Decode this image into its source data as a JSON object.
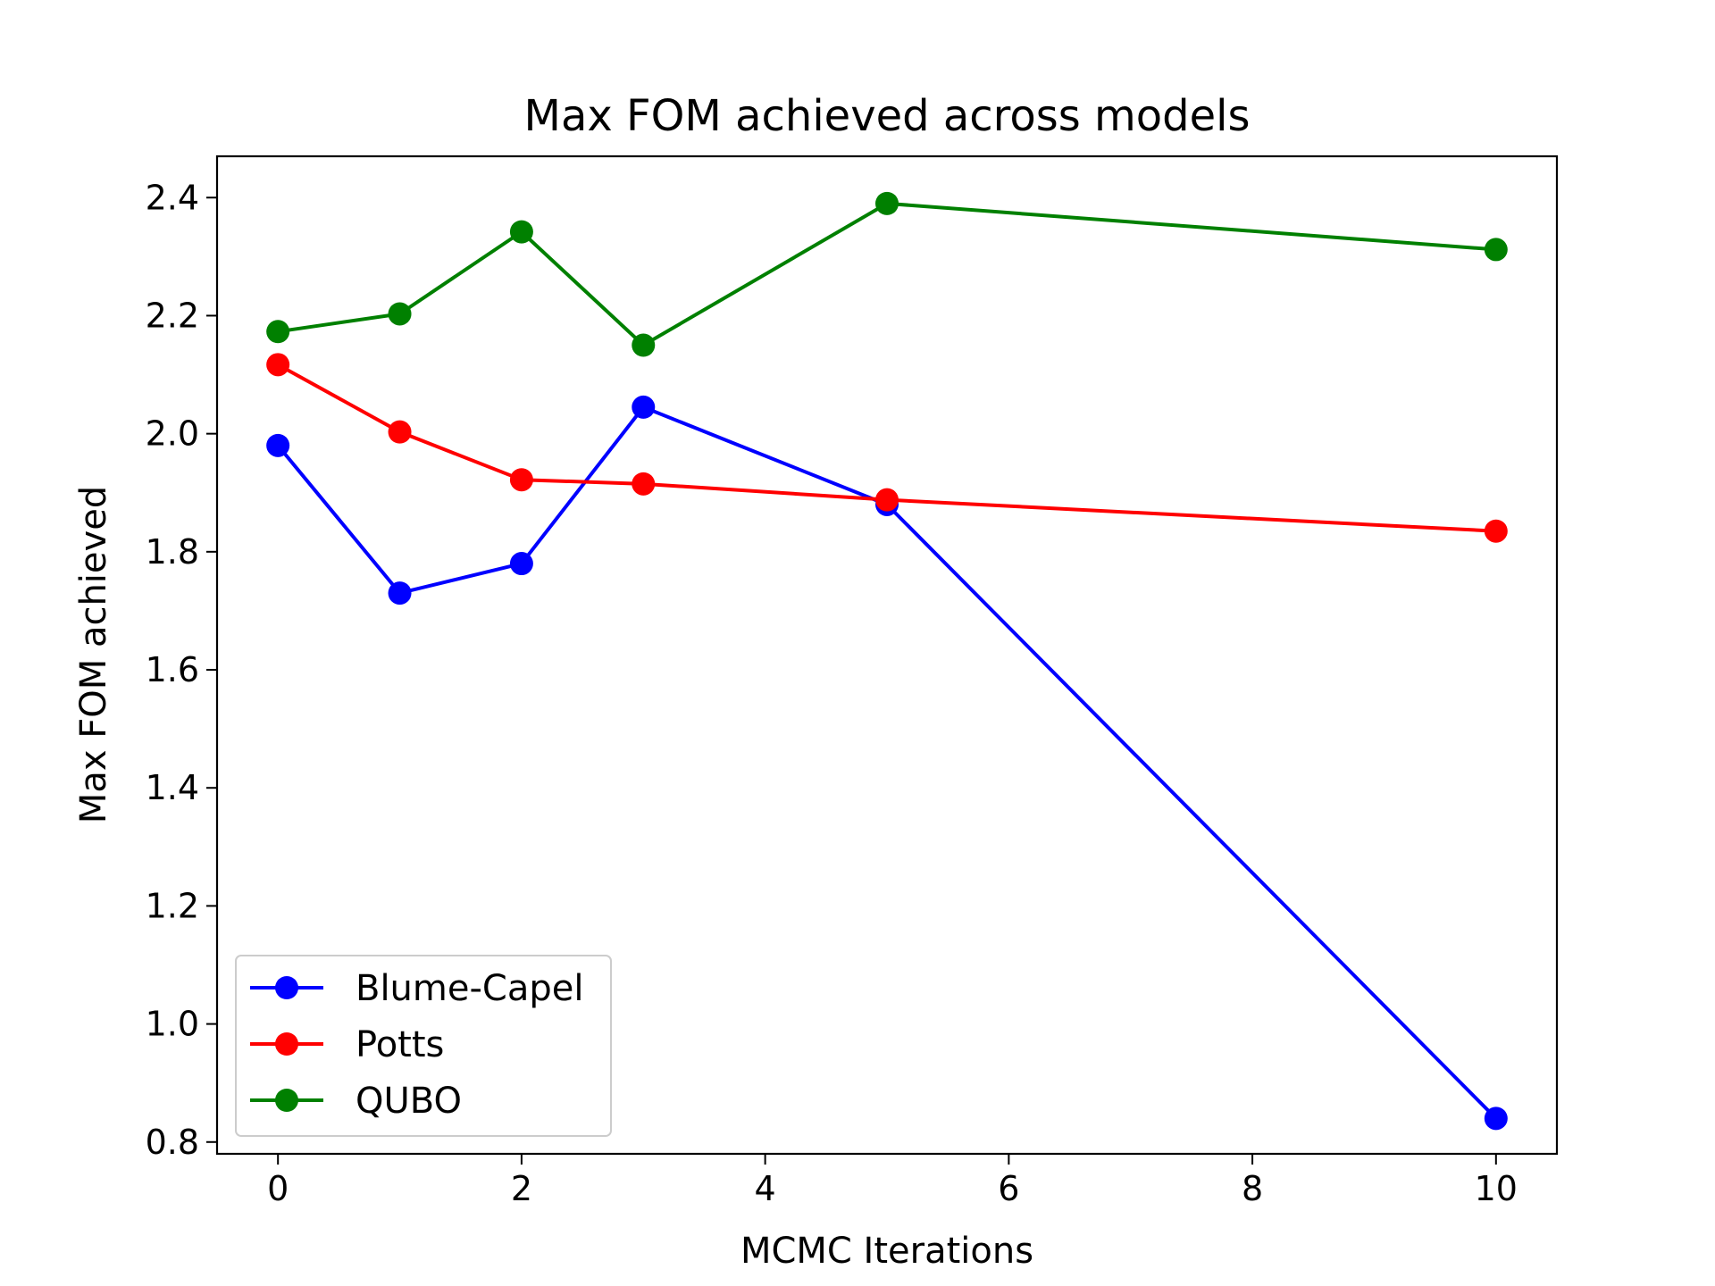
{
  "chart_data": {
    "type": "line",
    "title": "Max FOM achieved across models",
    "xlabel": "MCMC Iterations",
    "ylabel": "Max FOM achieved",
    "x": [
      0,
      1,
      2,
      3,
      5,
      10
    ],
    "xlim": [
      -0.5,
      10.5
    ],
    "ylim": [
      0.78,
      2.47
    ],
    "xticks": [
      "0",
      "2",
      "4",
      "6",
      "8",
      "10"
    ],
    "yticks": [
      "0.8",
      "1.0",
      "1.2",
      "1.4",
      "1.6",
      "1.8",
      "2.0",
      "2.2",
      "2.4"
    ],
    "grid": false,
    "legend_position": "lower left",
    "series": [
      {
        "name": "Blume-Capel",
        "color": "#0000ff",
        "marker": "circle",
        "values": [
          1.98,
          1.73,
          1.78,
          2.045,
          1.88,
          0.84
        ]
      },
      {
        "name": "Potts",
        "color": "#ff0000",
        "marker": "circle",
        "values": [
          2.117,
          2.003,
          1.922,
          1.915,
          1.888,
          1.835
        ]
      },
      {
        "name": "QUBO",
        "color": "#008000",
        "marker": "circle",
        "values": [
          2.173,
          2.203,
          2.342,
          2.15,
          2.39,
          2.312
        ]
      }
    ]
  }
}
